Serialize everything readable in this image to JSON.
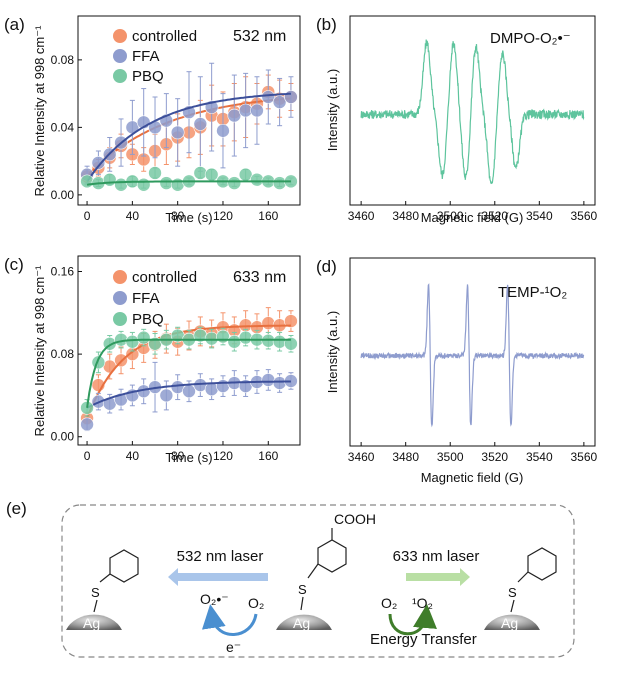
{
  "panels": {
    "a": "(a)",
    "b": "(b)",
    "c": "(c)",
    "d": "(d)",
    "e": "(e)"
  },
  "chart_data": [
    {
      "id": "a",
      "type": "scatter",
      "annotation": "532 nm",
      "xlabel": "Time (s)",
      "ylabel": "Relative Intensity at 998 cm⁻¹",
      "xlim": [
        -8,
        188
      ],
      "ylim": [
        -0.006,
        0.106
      ],
      "xticks": [
        0,
        40,
        80,
        120,
        160
      ],
      "yticks": [
        0.0,
        0.04,
        0.08
      ],
      "ytick_labels": [
        "0.00",
        "0.04",
        "0.08"
      ],
      "series": [
        {
          "name": "controlled",
          "color": "#f4936b",
          "x": [
            0,
            10,
            20,
            30,
            40,
            50,
            60,
            70,
            80,
            90,
            100,
            110,
            120,
            130,
            140,
            150,
            160,
            170,
            180
          ],
          "y": [
            0.011,
            0.016,
            0.022,
            0.029,
            0.024,
            0.021,
            0.026,
            0.03,
            0.034,
            0.037,
            0.04,
            0.047,
            0.045,
            0.049,
            0.052,
            0.054,
            0.061,
            0.057,
            0.058
          ],
          "err": [
            0.004,
            0.005,
            0.006,
            0.007,
            0.006,
            0.007,
            0.01,
            0.012,
            0.014,
            0.015,
            0.016,
            0.018,
            0.016,
            0.017,
            0.018,
            0.012,
            0.01,
            0.011,
            0.008
          ],
          "fit": {
            "a": 0.05,
            "tau": 70,
            "c": 0.011
          }
        },
        {
          "name": "FFA",
          "color": "#8e9cce",
          "x": [
            0,
            10,
            20,
            30,
            40,
            50,
            60,
            70,
            80,
            90,
            100,
            110,
            120,
            130,
            140,
            150,
            160,
            170,
            180
          ],
          "y": [
            0.012,
            0.019,
            0.024,
            0.031,
            0.04,
            0.043,
            0.04,
            0.044,
            0.037,
            0.049,
            0.042,
            0.052,
            0.038,
            0.047,
            0.05,
            0.05,
            0.058,
            0.055,
            0.058
          ],
          "err": [
            0.005,
            0.007,
            0.01,
            0.014,
            0.016,
            0.02,
            0.018,
            0.016,
            0.02,
            0.024,
            0.028,
            0.026,
            0.022,
            0.024,
            0.022,
            0.02,
            0.016,
            0.014,
            0.012
          ],
          "fit": {
            "a": 0.054,
            "tau": 55,
            "c": 0.008
          }
        },
        {
          "name": "PBQ",
          "color": "#79c9a4",
          "x": [
            0,
            10,
            20,
            30,
            40,
            50,
            60,
            70,
            80,
            90,
            100,
            110,
            120,
            130,
            140,
            150,
            160,
            170,
            180
          ],
          "y": [
            0.008,
            0.007,
            0.009,
            0.006,
            0.008,
            0.006,
            0.013,
            0.007,
            0.006,
            0.008,
            0.013,
            0.012,
            0.008,
            0.007,
            0.012,
            0.009,
            0.008,
            0.007,
            0.008
          ],
          "err": [
            0.002,
            0.002,
            0.003,
            0.002,
            0.003,
            0.002,
            0.003,
            0.002,
            0.002,
            0.002,
            0.003,
            0.003,
            0.002,
            0.002,
            0.003,
            0.002,
            0.002,
            0.002,
            0.002
          ],
          "fit": {
            "a": 0.002,
            "tau": 20,
            "c": 0.006
          }
        }
      ]
    },
    {
      "id": "b",
      "type": "line",
      "annotation": "DMPO-O₂•⁻",
      "xlabel": "Magnetic field (G)",
      "ylabel": "Intensity (a.u.)",
      "xlim": [
        3455,
        3565
      ],
      "xticks": [
        3460,
        3480,
        3500,
        3520,
        3540,
        3560
      ],
      "color": "#5ec49d",
      "x_range": [
        3460,
        3560
      ],
      "lines": [
        {
          "center": 3489.5,
          "amp": 1.0
        },
        {
          "center": 3496.5,
          "amp": -0.85
        },
        {
          "center": 3501.5,
          "amp": 1.0
        },
        {
          "center": 3507.0,
          "amp": -0.9
        },
        {
          "center": 3511.5,
          "amp": 0.95
        },
        {
          "center": 3518.5,
          "amp": -1.0
        },
        {
          "center": 3523.5,
          "amp": 0.85
        },
        {
          "center": 3529.5,
          "amp": -0.75
        }
      ]
    },
    {
      "id": "c",
      "type": "scatter",
      "annotation": "633 nm",
      "xlabel": "Time (s)",
      "ylabel": "Relative Intensity at 998 cm⁻¹",
      "xlim": [
        -8,
        188
      ],
      "ylim": [
        -0.008,
        0.175
      ],
      "xticks": [
        0,
        40,
        80,
        120,
        160
      ],
      "yticks": [
        0.0,
        0.08,
        0.16
      ],
      "ytick_labels": [
        "0.00",
        "0.08",
        "0.16"
      ],
      "series": [
        {
          "name": "controlled",
          "color": "#f4936b",
          "x": [
            0,
            10,
            20,
            30,
            40,
            50,
            60,
            70,
            80,
            90,
            100,
            110,
            120,
            130,
            140,
            150,
            160,
            170,
            180
          ],
          "y": [
            0.018,
            0.05,
            0.068,
            0.074,
            0.08,
            0.086,
            0.089,
            0.095,
            0.092,
            0.098,
            0.102,
            0.1,
            0.106,
            0.103,
            0.108,
            0.106,
            0.11,
            0.108,
            0.112
          ],
          "err": [
            0.006,
            0.01,
            0.012,
            0.013,
            0.014,
            0.014,
            0.013,
            0.014,
            0.013,
            0.014,
            0.014,
            0.013,
            0.014,
            0.013,
            0.014,
            0.013,
            0.015,
            0.014,
            0.01
          ],
          "fit": {
            "a": 0.09,
            "tau": 32,
            "c": 0.018
          }
        },
        {
          "name": "FFA",
          "color": "#8e9cce",
          "x": [
            0,
            10,
            20,
            30,
            40,
            50,
            60,
            70,
            80,
            90,
            100,
            110,
            120,
            130,
            140,
            150,
            160,
            170,
            180
          ],
          "y": [
            0.012,
            0.034,
            0.032,
            0.036,
            0.04,
            0.044,
            0.048,
            0.04,
            0.048,
            0.044,
            0.05,
            0.046,
            0.049,
            0.052,
            0.049,
            0.053,
            0.055,
            0.052,
            0.054
          ],
          "err": [
            0.006,
            0.008,
            0.009,
            0.01,
            0.01,
            0.012,
            0.024,
            0.014,
            0.012,
            0.01,
            0.011,
            0.01,
            0.01,
            0.012,
            0.01,
            0.011,
            0.01,
            0.009,
            0.008
          ],
          "fit": {
            "a": 0.026,
            "tau": 45,
            "c": 0.028
          }
        },
        {
          "name": "PBQ",
          "color": "#79c9a4",
          "x": [
            0,
            10,
            20,
            30,
            40,
            50,
            60,
            70,
            80,
            90,
            100,
            110,
            120,
            130,
            140,
            150,
            160,
            170,
            180
          ],
          "y": [
            0.028,
            0.072,
            0.09,
            0.094,
            0.092,
            0.096,
            0.09,
            0.094,
            0.098,
            0.094,
            0.098,
            0.095,
            0.097,
            0.092,
            0.096,
            0.094,
            0.093,
            0.092,
            0.09
          ],
          "err": [
            0.008,
            0.01,
            0.008,
            0.008,
            0.009,
            0.008,
            0.01,
            0.009,
            0.008,
            0.009,
            0.008,
            0.009,
            0.008,
            0.009,
            0.008,
            0.009,
            0.008,
            0.009,
            0.008
          ],
          "fit": {
            "a": 0.066,
            "tau": 8,
            "c": 0.028
          }
        }
      ]
    },
    {
      "id": "d",
      "type": "line",
      "annotation": "TEMP-¹O₂",
      "xlabel": "Magnetic field (G)",
      "ylabel": "Intensity (a.u.)",
      "xlim": [
        3455,
        3565
      ],
      "xticks": [
        3460,
        3480,
        3500,
        3520,
        3540,
        3560
      ],
      "color": "#8e9cce",
      "x_range": [
        3460,
        3560
      ],
      "lines": [
        {
          "center": 3491.0,
          "amp": 1.0
        },
        {
          "center": 3508.5,
          "amp": 1.0
        },
        {
          "center": 3526.5,
          "amp": 1.0
        }
      ]
    }
  ],
  "scheme": {
    "cooh": "COOH",
    "laser532": "532 nm laser",
    "laser633": "633 nm laser",
    "o2_radical": "O₂•⁻",
    "o2_left": "O₂",
    "electron": "e⁻",
    "o2_right": "O₂",
    "singlet_o2": "¹O₂",
    "energy_transfer": "Energy Transfer",
    "s_atom": "S",
    "ag": "Ag",
    "arrow_left_color": "#a9c5ea",
    "arrow_right_color": "#b9dfa4",
    "curve_left_color": "#4a8fd0",
    "curve_right_color": "#3f7d2a"
  }
}
